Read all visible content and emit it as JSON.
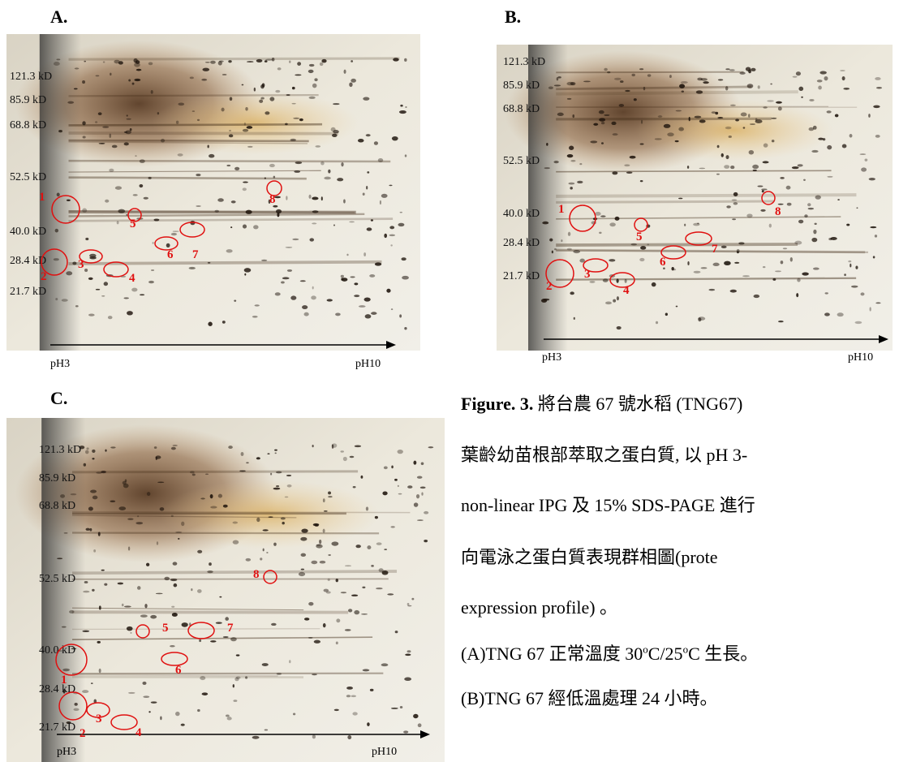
{
  "panels": [
    {
      "label": "A.",
      "mw_labels": [
        "121.3 kD",
        "85.9 kD",
        "68.8 kD",
        "52.5 kD",
        "40.0 kD",
        "28.4 kD",
        "21.7 kD"
      ],
      "ph_start": "pH3",
      "ph_end": "pH10",
      "spots": [
        "1",
        "2",
        "3",
        "4",
        "5",
        "6",
        "7",
        "8"
      ]
    },
    {
      "label": "B.",
      "mw_labels": [
        "121.3 kD",
        "85.9 kD",
        "68.8 kD",
        "52.5 kD",
        "40.0 kD",
        "28.4 kD",
        "21.7 kD"
      ],
      "ph_start": "pH3",
      "ph_end": "pH10",
      "spots": [
        "1",
        "2",
        "3",
        "4",
        "5",
        "6",
        "7",
        "8"
      ]
    },
    {
      "label": "C.",
      "mw_labels": [
        "121.3 kD",
        "85.9 kD",
        "68.8 kD",
        "52.5 kD",
        "40.0 kD",
        "28.4 kD",
        "21.7 kD"
      ],
      "ph_start": "pH3",
      "ph_end": "pH10",
      "spots": [
        "1",
        "2",
        "3",
        "4",
        "5",
        "6",
        "7",
        "8"
      ]
    }
  ],
  "caption": {
    "figure_label": "Figure. 3.",
    "first_line": " 將台農 67 號水稻 (TNG67)",
    "lines": [
      "葉齡幼苗根部萃取之蛋白質, 以 pH 3-",
      "non-linear IPG 及 15% SDS-PAGE 進行",
      "向電泳之蛋白質表現群相圖(prote",
      "expression profile) 。"
    ],
    "condition_a": [
      "(A)TNG 67 正常溫度 30",
      "o",
      "C/25",
      "o",
      "C 生長。"
    ],
    "condition_b": "(B)TNG 67 經低溫處理 24 小時。"
  }
}
